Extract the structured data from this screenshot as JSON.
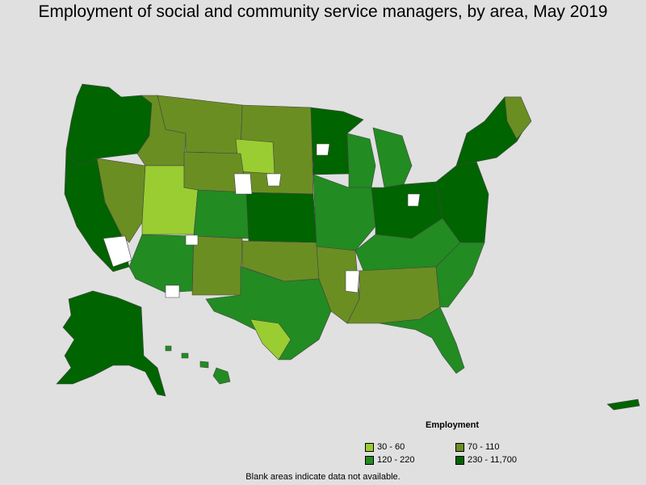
{
  "title": "Employment of social and community service managers, by area, May 2019",
  "legend": {
    "title": "Employment",
    "items": [
      {
        "label": "30 - 60",
        "color": "#9acd32"
      },
      {
        "label": "70 - 110",
        "color": "#6b8e23"
      },
      {
        "label": "120 - 220",
        "color": "#228b22"
      },
      {
        "label": "230 - 11,700",
        "color": "#006400"
      }
    ]
  },
  "footnote": "Blank areas indicate data not available.",
  "colors": {
    "background": "#e0e0e0",
    "no_data": "#ffffff",
    "border": "#444444"
  }
}
